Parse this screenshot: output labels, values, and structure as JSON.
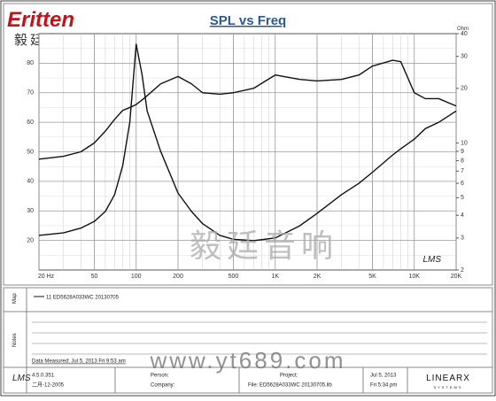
{
  "logo": {
    "brand": "Eritten",
    "chinese": "毅廷音响"
  },
  "watermark": {
    "chinese": "毅廷音响",
    "url": "www.yt689.com"
  },
  "software_mark": "LMS",
  "chart_data": {
    "type": "line",
    "title": "SPL vs Freq",
    "y2_label": "Ohm",
    "x": [
      20,
      30,
      40,
      50,
      60,
      70,
      80,
      90,
      100,
      110,
      120,
      150,
      200,
      250,
      300,
      400,
      500,
      700,
      1000,
      1500,
      2000,
      3000,
      4000,
      5000,
      7000,
      8000,
      10000,
      12000,
      15000,
      20000
    ],
    "series": [
      {
        "color": "#111111",
        "values": [
          47.5,
          48.5,
          50,
          53,
          57,
          61,
          64,
          65,
          66,
          67.5,
          69,
          73,
          75.5,
          73,
          70,
          69.5,
          70,
          71.5,
          76,
          74.5,
          74,
          74.5,
          76,
          79,
          81,
          80.5,
          70,
          68,
          68,
          65.5
        ]
      },
      {
        "color": "#111111",
        "axis": "y2",
        "values": [
          3.1,
          3.2,
          3.4,
          3.7,
          4.2,
          5.2,
          7.5,
          13,
          35,
          24,
          15,
          9,
          5.3,
          4.2,
          3.6,
          3.1,
          2.95,
          2.9,
          3.0,
          3.5,
          4.1,
          5.2,
          6.0,
          6.9,
          8.6,
          9.3,
          10.5,
          12,
          13,
          15
        ]
      }
    ],
    "xlim": [
      20,
      20000
    ],
    "xscale": "log",
    "xticks": [
      {
        "value": 20,
        "label": "20 Hz"
      },
      50,
      100,
      200,
      500,
      {
        "value": 1000,
        "label": "1K"
      },
      {
        "value": 2000,
        "label": "2K"
      },
      {
        "value": 5000,
        "label": "5K"
      },
      {
        "value": 10000,
        "label": "10K"
      },
      {
        "value": 20000,
        "label": "20K"
      }
    ],
    "ylim": [
      10,
      90
    ],
    "yticks": [
      20,
      30,
      40,
      50,
      60,
      70,
      80
    ],
    "y2lim": [
      2,
      40
    ],
    "y2scale": "log",
    "y2ticks": [
      40,
      30,
      20,
      10,
      9,
      8,
      7,
      6,
      5,
      4,
      3,
      2
    ],
    "grid": true
  },
  "panel": {
    "map_label": "Map",
    "map_entry": "11  ED5628A033WC  20130705",
    "notes_label": "Notes",
    "measured": "Data Measured: Jul 5, 2013  Fri  9:53 am"
  },
  "footer": {
    "version": "4.5.0.351",
    "date": "二月-12-2005",
    "person": "Person:",
    "company": "Company:",
    "project": "Project:",
    "file": "File: ED5628A033WC  20130705.lib",
    "print_date": "Jul 5, 2013",
    "print_time": "Fri  5:34 pm",
    "vendor": "LINEARX",
    "vendor_sub": "SYSTEMS"
  }
}
